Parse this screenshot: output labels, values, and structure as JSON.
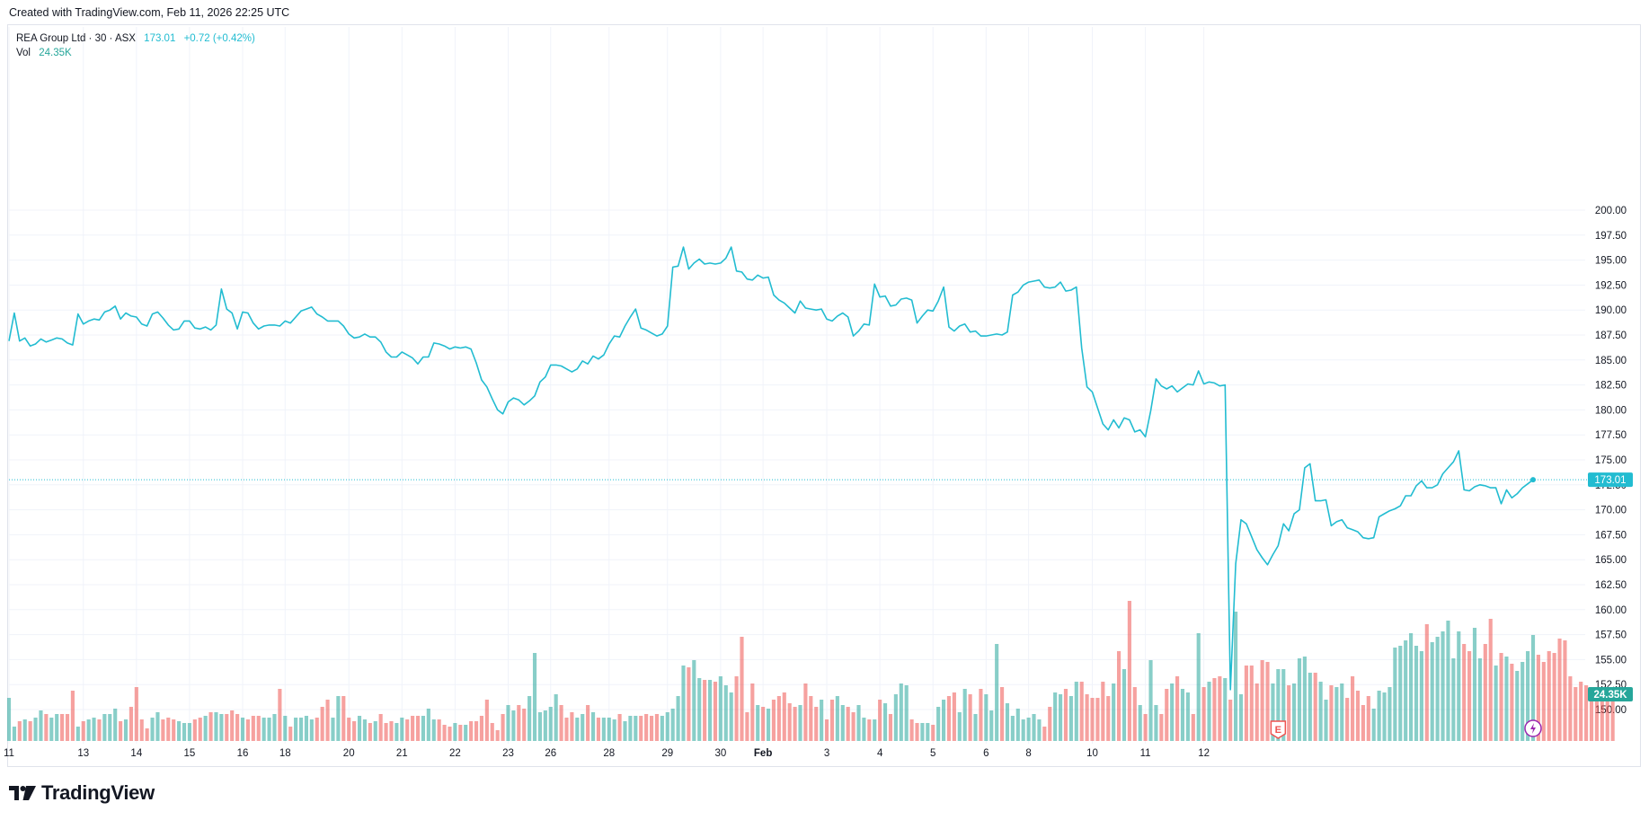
{
  "header": {
    "created_with": "Created with TradingView.com, Feb 11, 2026 22:25 UTC"
  },
  "legend": {
    "symbol": "REA Group Ltd · 30 · ASX",
    "price": "173.01",
    "change": "+0.72 (+0.42%)",
    "vol_label": "Vol",
    "vol_value": "24.35K"
  },
  "footer": {
    "brand": "TradingView"
  },
  "colors": {
    "line": "#22bcd1",
    "up": "#26a69a",
    "down": "#ef5350",
    "grid": "#f0f3fa",
    "axis_text": "#131722"
  },
  "chart_data": {
    "type": "line",
    "title": "",
    "xlabel": "",
    "ylabel": "",
    "ylim": [
      147.5,
      201.0
    ],
    "y_ticks": [
      "200.00",
      "197.50",
      "195.00",
      "192.50",
      "190.00",
      "187.50",
      "185.00",
      "182.50",
      "180.00",
      "177.50",
      "175.00",
      "172.50",
      "170.00",
      "167.50",
      "165.00",
      "162.50",
      "160.00",
      "157.50",
      "155.00",
      "152.50",
      "150.00"
    ],
    "x_ticks": [
      {
        "label": "11",
        "i": 0
      },
      {
        "label": "13",
        "i": 14
      },
      {
        "label": "14",
        "i": 24
      },
      {
        "label": "15",
        "i": 34
      },
      {
        "label": "16",
        "i": 44
      },
      {
        "label": "18",
        "i": 52
      },
      {
        "label": "20",
        "i": 64
      },
      {
        "label": "21",
        "i": 74
      },
      {
        "label": "22",
        "i": 84
      },
      {
        "label": "23",
        "i": 94
      },
      {
        "label": "26",
        "i": 102
      },
      {
        "label": "28",
        "i": 113
      },
      {
        "label": "29",
        "i": 124
      },
      {
        "label": "30",
        "i": 134
      },
      {
        "label": "Feb",
        "i": 142,
        "bold": true
      },
      {
        "label": "3",
        "i": 154
      },
      {
        "label": "4",
        "i": 164
      },
      {
        "label": "5",
        "i": 174
      },
      {
        "label": "6",
        "i": 184
      },
      {
        "label": "8",
        "i": 192
      },
      {
        "label": "10",
        "i": 204
      },
      {
        "label": "11",
        "i": 214
      },
      {
        "label": "12",
        "i": 225
      }
    ],
    "last_price": 173.01,
    "last_volume": "24.35K",
    "series": [
      {
        "values": [
          186.9,
          189.7,
          186.9,
          187.2,
          186.4,
          186.6,
          187.1,
          186.8,
          187.0,
          187.2,
          187.1,
          186.7,
          186.5,
          189.6,
          188.6,
          188.9,
          189.1,
          189.0,
          189.8,
          190.0,
          190.4,
          189.1,
          189.7,
          189.4,
          189.3,
          188.6,
          188.4,
          189.6,
          189.8,
          189.2,
          188.5,
          188.0,
          188.1,
          188.9,
          188.9,
          188.2,
          188.1,
          188.3,
          188.0,
          188.5,
          192.1,
          190.1,
          189.7,
          188.1,
          189.8,
          189.7,
          188.7,
          188.1,
          188.4,
          188.5,
          188.5,
          188.4,
          188.9,
          188.7,
          189.3,
          189.9,
          190.1,
          190.3,
          189.6,
          189.3,
          188.9,
          188.9,
          188.9,
          188.4,
          187.6,
          187.2,
          187.3,
          187.6,
          187.3,
          187.3,
          186.8,
          185.8,
          185.3,
          185.3,
          185.8,
          185.5,
          185.2,
          184.6,
          185.3,
          185.3,
          186.7,
          186.6,
          186.4,
          186.1,
          186.3,
          186.2,
          186.3,
          186.1,
          184.7,
          183.0,
          182.3,
          181.1,
          180.0,
          179.6,
          180.8,
          181.2,
          181.0,
          180.5,
          180.9,
          181.4,
          182.8,
          183.3,
          184.5,
          184.5,
          184.4,
          184.1,
          183.8,
          184.1,
          184.9,
          184.6,
          185.4,
          185.1,
          185.5,
          186.6,
          187.4,
          187.3,
          188.4,
          189.3,
          190.1,
          188.2,
          188.0,
          187.7,
          187.4,
          187.6,
          188.4,
          194.3,
          194.4,
          196.3,
          194.1,
          194.7,
          195.1,
          194.6,
          194.7,
          194.6,
          194.7,
          195.2,
          196.3,
          193.9,
          193.8,
          193.1,
          193.0,
          193.5,
          193.2,
          193.3,
          191.5,
          191.0,
          190.7,
          190.2,
          189.7,
          190.9,
          190.2,
          190.1,
          190.0,
          190.1,
          189.1,
          188.9,
          189.4,
          189.7,
          189.3,
          187.4,
          187.9,
          188.6,
          188.5,
          192.6,
          191.3,
          191.4,
          190.4,
          190.5,
          191.1,
          191.2,
          191.0,
          188.7,
          189.4,
          190.0,
          189.9,
          190.9,
          192.3,
          188.3,
          187.9,
          188.4,
          188.6,
          187.8,
          187.9,
          187.4,
          187.4,
          187.5,
          187.6,
          187.5,
          187.8,
          191.5,
          191.8,
          192.5,
          192.8,
          192.9,
          193.0,
          192.3,
          192.2,
          192.3,
          192.8,
          191.9,
          192.0,
          192.3,
          186.2,
          182.3,
          181.8,
          180.2,
          178.6,
          178.0,
          179.0,
          178.2,
          179.2,
          179.0,
          177.8,
          178.0,
          177.3,
          179.9,
          183.1,
          182.4,
          182.1,
          182.4,
          181.8,
          182.2,
          182.6,
          182.5,
          183.9,
          182.6,
          182.8,
          182.7,
          182.4,
          182.5,
          152.0,
          164.6,
          169.0,
          168.6,
          167.3,
          166.0,
          165.2,
          164.5,
          165.5,
          166.4,
          168.6,
          167.9,
          169.6,
          170.0,
          174.2,
          174.6,
          170.9,
          170.9,
          171.0,
          168.4,
          168.8,
          169.0,
          168.2,
          168.0,
          167.8,
          167.2,
          167.1,
          167.2,
          169.3,
          169.6,
          169.9,
          170.1,
          170.4,
          171.4,
          171.4,
          172.4,
          172.9,
          172.2,
          172.2,
          172.5,
          173.6,
          174.2,
          174.8,
          175.9,
          172.0,
          171.9,
          172.3,
          172.5,
          172.4,
          172.2,
          172.2,
          170.6,
          172.0,
          171.2,
          171.6,
          172.2,
          172.6,
          173.01
        ]
      },
      {
        "name": "Vol",
        "values": [
          0.24,
          0.08,
          0.11,
          0.12,
          0.11,
          0.13,
          0.17,
          0.15,
          0.13,
          0.15,
          0.15,
          0.15,
          0.28,
          0.08,
          0.11,
          0.12,
          0.13,
          0.12,
          0.15,
          0.15,
          0.18,
          0.11,
          0.12,
          0.19,
          0.3,
          0.12,
          0.07,
          0.13,
          0.16,
          0.12,
          0.13,
          0.12,
          0.11,
          0.1,
          0.1,
          0.12,
          0.13,
          0.14,
          0.16,
          0.16,
          0.15,
          0.15,
          0.17,
          0.15,
          0.13,
          0.12,
          0.14,
          0.14,
          0.13,
          0.13,
          0.15,
          0.29,
          0.14,
          0.08,
          0.13,
          0.13,
          0.14,
          0.12,
          0.13,
          0.19,
          0.23,
          0.13,
          0.25,
          0.25,
          0.13,
          0.11,
          0.14,
          0.12,
          0.1,
          0.11,
          0.15,
          0.1,
          0.11,
          0.1,
          0.13,
          0.12,
          0.14,
          0.14,
          0.14,
          0.18,
          0.12,
          0.12,
          0.09,
          0.08,
          0.1,
          0.09,
          0.09,
          0.11,
          0.11,
          0.14,
          0.23,
          0.1,
          0.06,
          0.15,
          0.2,
          0.17,
          0.2,
          0.18,
          0.25,
          0.49,
          0.16,
          0.17,
          0.19,
          0.26,
          0.2,
          0.13,
          0.16,
          0.13,
          0.15,
          0.2,
          0.16,
          0.13,
          0.13,
          0.13,
          0.12,
          0.15,
          0.11,
          0.14,
          0.14,
          0.14,
          0.15,
          0.14,
          0.15,
          0.14,
          0.16,
          0.18,
          0.25,
          0.42,
          0.41,
          0.45,
          0.35,
          0.34,
          0.34,
          0.33,
          0.36,
          0.31,
          0.27,
          0.36,
          0.58,
          0.16,
          0.32,
          0.2,
          0.19,
          0.18,
          0.23,
          0.25,
          0.27,
          0.21,
          0.19,
          0.2,
          0.32,
          0.25,
          0.19,
          0.23,
          0.12,
          0.23,
          0.25,
          0.2,
          0.19,
          0.16,
          0.2,
          0.13,
          0.12,
          0.12,
          0.23,
          0.21,
          0.15,
          0.26,
          0.32,
          0.31,
          0.12,
          0.1,
          0.1,
          0.1,
          0.09,
          0.19,
          0.23,
          0.25,
          0.27,
          0.16,
          0.29,
          0.26,
          0.15,
          0.29,
          0.26,
          0.17,
          0.54,
          0.3,
          0.21,
          0.14,
          0.18,
          0.12,
          0.13,
          0.15,
          0.12,
          0.08,
          0.19,
          0.27,
          0.26,
          0.29,
          0.25,
          0.33,
          0.33,
          0.26,
          0.24,
          0.24,
          0.33,
          0.25,
          0.32,
          0.5,
          0.4,
          0.78,
          0.3,
          0.2,
          0.15,
          0.45,
          0.2,
          0.15,
          0.29,
          0.32,
          0.36,
          0.29,
          0.27,
          0.15,
          0.6,
          0.3,
          0.33,
          0.35,
          0.36,
          0.35,
          0.23,
          0.72,
          0.26,
          0.42,
          0.42,
          0.32,
          0.45,
          0.44,
          0.32,
          0.4,
          0.4,
          0.31,
          0.32,
          0.46,
          0.47,
          0.38,
          0.38,
          0.33,
          0.23,
          0.31,
          0.3,
          0.32,
          0.24,
          0.36,
          0.28,
          0.2,
          0.25,
          0.18,
          0.28,
          0.27,
          0.3,
          0.52,
          0.53,
          0.56,
          0.6,
          0.53,
          0.5,
          0.65,
          0.55,
          0.58,
          0.61,
          0.67,
          0.46,
          0.61,
          0.54,
          0.5,
          0.63,
          0.46,
          0.54,
          0.68,
          0.42,
          0.49,
          0.47,
          0.43,
          0.39,
          0.44,
          0.5,
          0.59,
          0.48,
          0.44,
          0.5,
          0.49,
          0.57,
          0.56,
          0.36,
          0.3,
          0.33,
          0.31,
          0.25,
          0.27,
          0.25,
          0.26,
          0.3
        ]
      }
    ]
  }
}
